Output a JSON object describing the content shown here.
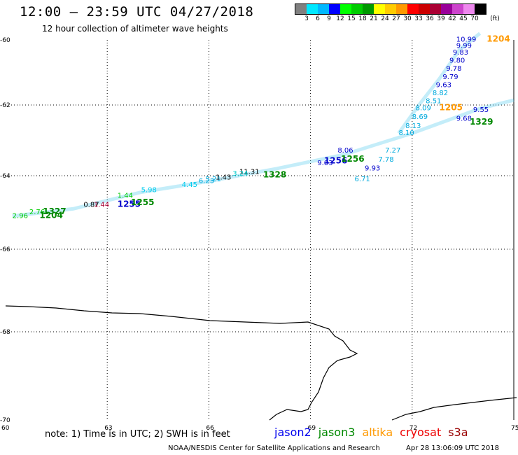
{
  "header": {
    "title": "12:00 – 23:59 UTC 04/27/2018",
    "subtitle": "12 hour collection of altimeter wave heights"
  },
  "legend": {
    "units": "(ft)",
    "bins": [
      {
        "label": "",
        "color": "#808080"
      },
      {
        "label": "3",
        "color": "#00e8ff"
      },
      {
        "label": "6",
        "color": "#00b8ff"
      },
      {
        "label": "9",
        "color": "#0000ff"
      },
      {
        "label": "12",
        "color": "#00ff00"
      },
      {
        "label": "15",
        "color": "#00cc00"
      },
      {
        "label": "18",
        "color": "#009900"
      },
      {
        "label": "21",
        "color": "#ffff00"
      },
      {
        "label": "24",
        "color": "#ffcc00"
      },
      {
        "label": "27",
        "color": "#ff9900"
      },
      {
        "label": "30",
        "color": "#ff0000"
      },
      {
        "label": "33",
        "color": "#cc0000"
      },
      {
        "label": "36",
        "color": "#aa0033"
      },
      {
        "label": "39",
        "color": "#990099"
      },
      {
        "label": "42",
        "color": "#cc44cc"
      },
      {
        "label": "45",
        "color": "#ee88ee"
      },
      {
        "label": "70",
        "color": "#000000"
      }
    ]
  },
  "map": {
    "lon_ticks": [
      "60",
      "63",
      "66",
      "69",
      "72",
      "75"
    ],
    "lat_ticks": [
      "-60",
      "-62",
      "-64",
      "-66",
      "-68",
      "-70"
    ],
    "observations": [
      {
        "text": "10.99",
        "lon": 73.3,
        "lat": -60.05,
        "color": "#0000cc"
      },
      {
        "text": "9.99",
        "lon": 73.3,
        "lat": -60.25,
        "color": "#0000cc"
      },
      {
        "text": "9.83",
        "lon": 73.2,
        "lat": -60.45,
        "color": "#0000cc"
      },
      {
        "text": "9.80",
        "lon": 73.1,
        "lat": -60.7,
        "color": "#0000cc"
      },
      {
        "text": "9.78",
        "lon": 73.0,
        "lat": -60.95,
        "color": "#0000cc"
      },
      {
        "text": "9.79",
        "lon": 72.9,
        "lat": -61.2,
        "color": "#0000cc"
      },
      {
        "text": "9.63",
        "lon": 72.7,
        "lat": -61.45,
        "color": "#0000cc"
      },
      {
        "text": "8.82",
        "lon": 72.6,
        "lat": -61.7,
        "color": "#00aadd"
      },
      {
        "text": "8.51",
        "lon": 72.4,
        "lat": -61.95,
        "color": "#00aadd"
      },
      {
        "text": "8.09",
        "lon": 72.1,
        "lat": -62.15,
        "color": "#00aadd"
      },
      {
        "text": "8.69",
        "lon": 72.0,
        "lat": -62.4,
        "color": "#00aadd"
      },
      {
        "text": "8.13",
        "lon": 71.8,
        "lat": -62.65,
        "color": "#00aadd"
      },
      {
        "text": "7.27",
        "lon": 71.2,
        "lat": -63.35,
        "color": "#00aadd"
      },
      {
        "text": "7.78",
        "lon": 71.0,
        "lat": -63.6,
        "color": "#00aadd"
      },
      {
        "text": "9.93",
        "lon": 70.6,
        "lat": -63.85,
        "color": "#0000cc"
      },
      {
        "text": "6.71",
        "lon": 70.3,
        "lat": -64.15,
        "color": "#00aadd"
      },
      {
        "text": "11.31",
        "lon": 66.9,
        "lat": -63.95,
        "color": "#000000"
      },
      {
        "text": "3.24",
        "lon": 66.7,
        "lat": -64.0,
        "color": "#00cccc"
      },
      {
        "text": "5.21",
        "lon": 65.9,
        "lat": -64.15,
        "color": "#00aadd"
      },
      {
        "text": "1.43",
        "lon": 66.2,
        "lat": -64.1,
        "color": "#000000"
      },
      {
        "text": "6.23",
        "lon": 65.7,
        "lat": -64.2,
        "color": "#00aadd"
      },
      {
        "text": "4.45",
        "lon": 65.2,
        "lat": -64.3,
        "color": "#00ccee"
      },
      {
        "text": "0.87",
        "lon": 62.3,
        "lat": -64.85,
        "color": "#000000"
      },
      {
        "text": "1.44",
        "lon": 62.6,
        "lat": -64.85,
        "color": "#aa0033"
      },
      {
        "text": "2.96",
        "lon": 60.2,
        "lat": -65.15,
        "color": "#00cc00"
      },
      {
        "text": "2.76",
        "lon": 60.7,
        "lat": -65.05,
        "color": "#00cc00"
      },
      {
        "text": "1.44",
        "lon": 63.3,
        "lat": -64.6,
        "color": "#00cc00"
      },
      {
        "text": "5.98",
        "lon": 64.0,
        "lat": -64.45,
        "color": "#00ccee"
      },
      {
        "text": "9.03",
        "lon": 69.2,
        "lat": -63.7,
        "color": "#0000cc"
      },
      {
        "text": "8.06",
        "lon": 69.8,
        "lat": -63.35,
        "color": "#0000cc"
      },
      {
        "text": "8.10",
        "lon": 71.6,
        "lat": -62.85,
        "color": "#00aadd"
      },
      {
        "text": "9.68",
        "lon": 73.3,
        "lat": -62.45,
        "color": "#0000cc"
      },
      {
        "text": "9.55",
        "lon": 73.8,
        "lat": -62.2,
        "color": "#0000cc"
      }
    ],
    "passes": [
      {
        "text": "1204",
        "lon": 74.2,
        "lat": -60.05,
        "color": "#ff9900"
      },
      {
        "text": "1205",
        "lon": 72.8,
        "lat": -62.15,
        "color": "#ff9900"
      },
      {
        "text": "1329",
        "lon": 73.7,
        "lat": -62.55,
        "color": "#008800"
      },
      {
        "text": "1256",
        "lon": 69.4,
        "lat": -63.65,
        "color": "#0000cc"
      },
      {
        "text": "1256",
        "lon": 69.9,
        "lat": -63.6,
        "color": "#008800"
      },
      {
        "text": "1328",
        "lon": 67.6,
        "lat": -64.05,
        "color": "#008800"
      },
      {
        "text": "1255",
        "lon": 63.3,
        "lat": -64.85,
        "color": "#0000cc"
      },
      {
        "text": "1255",
        "lon": 63.7,
        "lat": -64.8,
        "color": "#008800"
      },
      {
        "text": "1327",
        "lon": 61.1,
        "lat": -65.05,
        "color": "#008800"
      },
      {
        "text": "1204",
        "lon": 61.0,
        "lat": -65.15,
        "color": "#008800"
      }
    ]
  },
  "footer": {
    "note": "note: 1) Time is in UTC; 2) SWH is in feet",
    "missions": [
      {
        "name": "jason2",
        "color": "#0000ee"
      },
      {
        "name": "jason3",
        "color": "#008800"
      },
      {
        "name": "altika",
        "color": "#ff9900"
      },
      {
        "name": "cryosat",
        "color": "#ee0000"
      },
      {
        "name": "s3a",
        "color": "#990000"
      }
    ],
    "credit": "NOAA/NESDIS Center for Satellite Applications and Research",
    "timestamp": "Apr 28 13:06:09 UTC 2018"
  }
}
